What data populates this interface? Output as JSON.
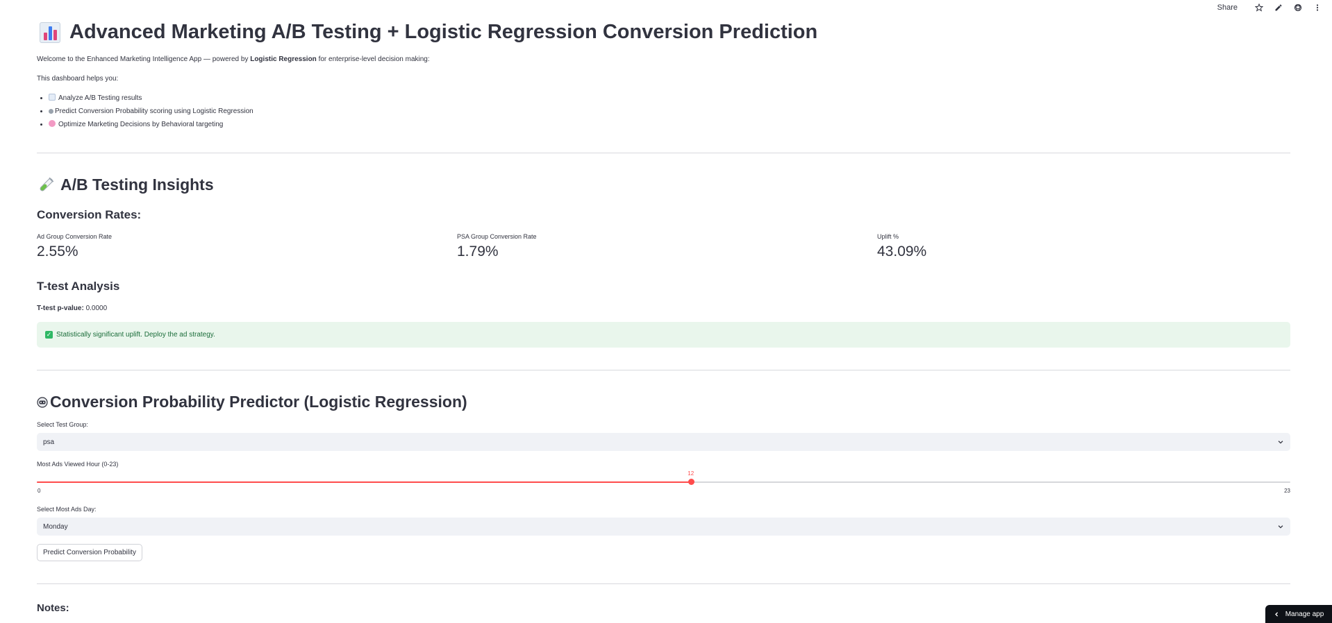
{
  "toolbar": {
    "share_label": "Share",
    "icons": [
      "star-icon",
      "pencil-icon",
      "github-icon",
      "more-vertical-icon"
    ]
  },
  "header": {
    "title": "Advanced Marketing A/B Testing + Logistic Regression Conversion Prediction",
    "icon": "bar-chart-icon"
  },
  "intro": {
    "welcome_prefix": "Welcome to the Enhanced Marketing Intelligence App — powered by ",
    "welcome_bold": "Logistic Regression",
    "welcome_suffix": " for enterprise-level decision making:",
    "helps_label": "This dashboard helps you:",
    "bullets": [
      {
        "icon": "chart-increasing-icon",
        "text": "Analyze A/B Testing results"
      },
      {
        "icon": "robot-icon",
        "text": "Predict Conversion Probability scoring using Logistic Regression"
      },
      {
        "icon": "brain-icon",
        "text": "Optimize Marketing Decisions by Behavioral targeting"
      }
    ]
  },
  "ab_section": {
    "title": "A/B Testing Insights",
    "icon": "test-tube-icon",
    "rates_heading": "Conversion Rates:",
    "metrics": [
      {
        "label": "Ad Group Conversion Rate",
        "value": "2.55%"
      },
      {
        "label": "PSA Group Conversion Rate",
        "value": "1.79%"
      },
      {
        "label": "Uplift %",
        "value": "43.09%"
      }
    ],
    "ttest_heading": "T-test Analysis",
    "ttest_label": "T-test p-value:",
    "ttest_value": " 0.0000",
    "success_message": "Statistically significant uplift. Deploy the ad strategy."
  },
  "predictor": {
    "title": "Conversion Probability Predictor (Logistic Regression)",
    "icon": "robot-icon",
    "group_label": "Select Test Group:",
    "group_value": "psa",
    "hour_label": "Most Ads Viewed Hour (0-23)",
    "hour_value": 12,
    "hour_value_text": "12",
    "hour_min": 0,
    "hour_max": 23,
    "hour_min_text": "0",
    "hour_max_text": "23",
    "day_label": "Select Most Ads Day:",
    "day_value": "Monday",
    "predict_button": "Predict Conversion Probability"
  },
  "notes": {
    "heading": "Notes:"
  },
  "manage_app": {
    "label": "Manage app"
  },
  "colors": {
    "accent": "#ff4b4b",
    "text": "#31333f",
    "success_bg": "#e9f6ec",
    "success_text": "#1b6d3a",
    "select_bg": "#f0f2f6",
    "divider": "#d8d9dd"
  }
}
